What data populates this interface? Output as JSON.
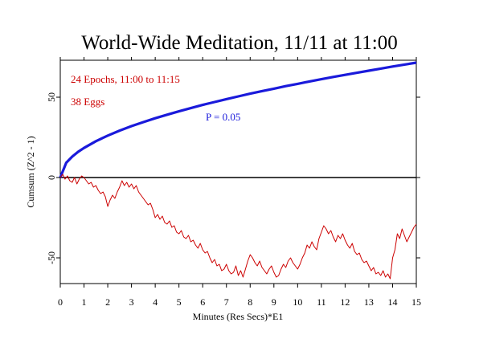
{
  "chart_data": {
    "type": "line",
    "title": "World-Wide Meditation, 11/11 at 11:00",
    "xlabel": "Minutes (Res Secs)*E1",
    "ylabel": "Cumsum (Z^2 - 1)",
    "xlim": [
      0,
      15
    ],
    "ylim": [
      -66,
      73
    ],
    "x_ticks": [
      0,
      1,
      2,
      3,
      4,
      5,
      6,
      7,
      8,
      9,
      10,
      11,
      12,
      13,
      14,
      15
    ],
    "y_ticks": [
      -50,
      0,
      50
    ],
    "zero_line": true,
    "annotations": {
      "epochs": "24 Epochs, 11:00 to 11:15",
      "eggs": "38 Eggs",
      "p_label": "P = 0.05"
    },
    "colors": {
      "frame": "#000000",
      "cumsum": "#cc0000",
      "probability": "#1a1adb",
      "annotation_red": "#cc0000",
      "annotation_blue": "#1a1adb"
    },
    "series": [
      {
        "style": "thick",
        "color": "#1a1adb",
        "x": [
          0,
          0.25,
          0.5,
          0.75,
          1,
          1.5,
          2,
          2.5,
          3,
          3.5,
          4,
          4.5,
          5,
          5.5,
          6,
          6.5,
          7,
          7.5,
          8,
          8.5,
          9,
          9.5,
          10,
          10.5,
          11,
          11.5,
          12,
          12.5,
          13,
          13.5,
          14,
          14.5,
          15
        ],
        "values": [
          0,
          9.2,
          13.0,
          16.0,
          18.4,
          22.6,
          26.1,
          29.2,
          32.0,
          34.5,
          36.9,
          39.1,
          41.2,
          43.2,
          45.2,
          47.0,
          48.8,
          50.5,
          52.2,
          53.8,
          55.3,
          56.9,
          58.3,
          59.8,
          61.2,
          62.6,
          63.9,
          65.2,
          66.5,
          67.8,
          69.1,
          70.3,
          71.5
        ]
      },
      {
        "style": "thin",
        "color": "#cc0000",
        "x": [
          0,
          0.1,
          0.2,
          0.3,
          0.4,
          0.5,
          0.6,
          0.7,
          0.8,
          0.9,
          1.0,
          1.1,
          1.2,
          1.3,
          1.4,
          1.5,
          1.6,
          1.7,
          1.8,
          1.9,
          2.0,
          2.1,
          2.2,
          2.3,
          2.4,
          2.5,
          2.6,
          2.7,
          2.8,
          2.9,
          3.0,
          3.1,
          3.2,
          3.3,
          3.4,
          3.5,
          3.6,
          3.7,
          3.8,
          3.9,
          4.0,
          4.1,
          4.2,
          4.3,
          4.4,
          4.5,
          4.6,
          4.7,
          4.8,
          4.9,
          5.0,
          5.1,
          5.2,
          5.3,
          5.4,
          5.5,
          5.6,
          5.7,
          5.8,
          5.9,
          6.0,
          6.1,
          6.2,
          6.3,
          6.4,
          6.5,
          6.6,
          6.7,
          6.8,
          6.9,
          7.0,
          7.1,
          7.2,
          7.3,
          7.4,
          7.5,
          7.6,
          7.7,
          7.8,
          7.9,
          8.0,
          8.1,
          8.2,
          8.3,
          8.4,
          8.5,
          8.6,
          8.7,
          8.8,
          8.9,
          9.0,
          9.1,
          9.2,
          9.3,
          9.4,
          9.5,
          9.6,
          9.7,
          9.8,
          9.9,
          10.0,
          10.1,
          10.2,
          10.3,
          10.4,
          10.5,
          10.6,
          10.7,
          10.8,
          10.9,
          11.0,
          11.1,
          11.2,
          11.3,
          11.4,
          11.5,
          11.6,
          11.7,
          11.8,
          11.9,
          12.0,
          12.1,
          12.2,
          12.3,
          12.4,
          12.5,
          12.6,
          12.7,
          12.8,
          12.9,
          13.0,
          13.1,
          13.2,
          13.3,
          13.4,
          13.5,
          13.6,
          13.7,
          13.8,
          13.9,
          14.0,
          14.1,
          14.2,
          14.3,
          14.4,
          14.5,
          14.6,
          14.7,
          14.8,
          14.9,
          15.0
        ],
        "values": [
          0,
          2,
          -1,
          1,
          -2,
          -3,
          0,
          -4,
          -1,
          1,
          0,
          -2,
          -4,
          -3,
          -6,
          -5,
          -8,
          -10,
          -9,
          -12,
          -18,
          -14,
          -11,
          -13,
          -9,
          -6,
          -2,
          -5,
          -3,
          -6,
          -4,
          -7,
          -5,
          -9,
          -11,
          -13,
          -15,
          -17,
          -16,
          -20,
          -25,
          -23,
          -26,
          -24,
          -28,
          -29,
          -27,
          -31,
          -30,
          -34,
          -35,
          -33,
          -37,
          -38,
          -36,
          -40,
          -39,
          -42,
          -44,
          -41,
          -45,
          -47,
          -46,
          -50,
          -53,
          -51,
          -55,
          -54,
          -58,
          -57,
          -54,
          -58,
          -60,
          -59,
          -55,
          -61,
          -58,
          -62,
          -57,
          -52,
          -48,
          -50,
          -53,
          -55,
          -52,
          -56,
          -58,
          -60,
          -57,
          -55,
          -59,
          -62,
          -61,
          -57,
          -54,
          -56,
          -52,
          -50,
          -53,
          -55,
          -57,
          -54,
          -50,
          -47,
          -42,
          -44,
          -40,
          -43,
          -45,
          -38,
          -34,
          -30,
          -32,
          -35,
          -33,
          -37,
          -40,
          -36,
          -38,
          -35,
          -39,
          -42,
          -44,
          -41,
          -46,
          -48,
          -47,
          -51,
          -53,
          -52,
          -55,
          -58,
          -56,
          -60,
          -59,
          -61,
          -58,
          -62,
          -60,
          -63,
          -50,
          -45,
          -35,
          -38,
          -32,
          -36,
          -40,
          -37,
          -34,
          -31,
          -29
        ]
      }
    ]
  }
}
